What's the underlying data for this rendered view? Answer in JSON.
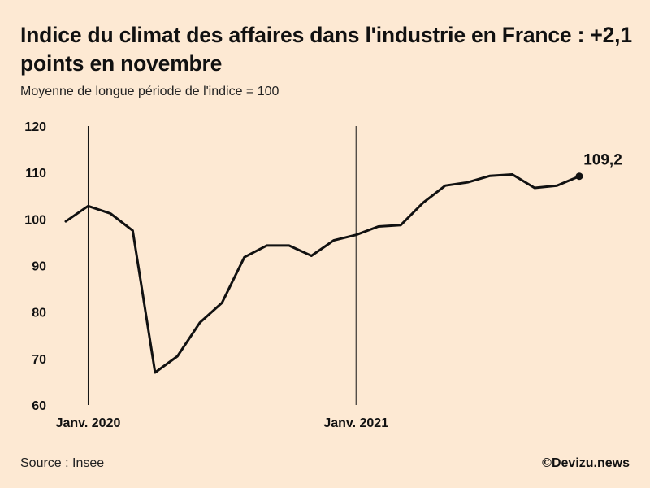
{
  "header": {
    "title": "Indice du climat des affaires dans l'industrie en France : +2,1 points en novembre",
    "subtitle": "Moyenne de longue période de l'indice = 100"
  },
  "footer": {
    "source": "Source : Insee",
    "credit": "©Devizu.news"
  },
  "colors": {
    "background": "#fde9d3",
    "line": "#111111"
  },
  "chart_data": {
    "type": "line",
    "x": [
      "2019-12",
      "2020-01",
      "2020-02",
      "2020-03",
      "2020-04",
      "2020-05",
      "2020-06",
      "2020-07",
      "2020-08",
      "2020-09",
      "2020-10",
      "2020-11",
      "2020-12",
      "2021-01",
      "2021-02",
      "2021-03",
      "2021-04",
      "2021-05",
      "2021-06",
      "2021-07",
      "2021-08",
      "2021-09",
      "2021-10",
      "2021-11"
    ],
    "series": [
      {
        "values": [
          99.5,
          102.8,
          101.2,
          97.5,
          67.0,
          70.5,
          77.7,
          82.0,
          91.8,
          94.3,
          94.3,
          92.1,
          95.4,
          96.6,
          98.4,
          98.7,
          103.5,
          107.2,
          107.9,
          109.3,
          109.6,
          106.7,
          107.2,
          109.2
        ]
      }
    ],
    "ylim": [
      60,
      120
    ],
    "yticks": [
      60,
      70,
      80,
      90,
      100,
      110,
      120
    ],
    "ytick_labels": [
      "60",
      "70",
      "80",
      "90",
      "100",
      "110",
      "120"
    ],
    "reference_lines": [
      {
        "x": "2020-01",
        "label": "Janv. 2020"
      },
      {
        "x": "2021-01",
        "label": "Janv. 2021"
      }
    ],
    "last_point_label": "109,2",
    "grid": false,
    "legend": "none"
  }
}
